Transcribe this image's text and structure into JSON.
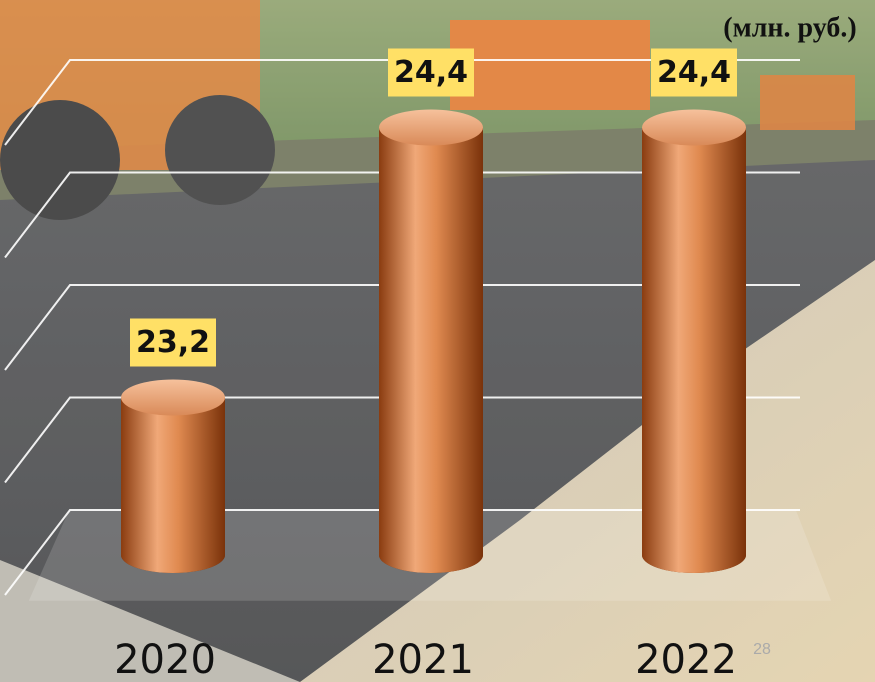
{
  "chart_data": {
    "type": "bar",
    "unit_label": "(млн. руб.)",
    "page_number": "28",
    "categories": [
      "2020",
      "2021",
      "2022"
    ],
    "values": [
      23.2,
      24.4,
      24.4
    ],
    "value_labels": [
      "23,2",
      "24,4",
      "24,4"
    ],
    "color": "#d9773a",
    "ylim": [
      22.5,
      24.5
    ],
    "yticks": [
      22.5,
      23,
      23.5,
      24,
      24.5
    ],
    "grid": true
  }
}
